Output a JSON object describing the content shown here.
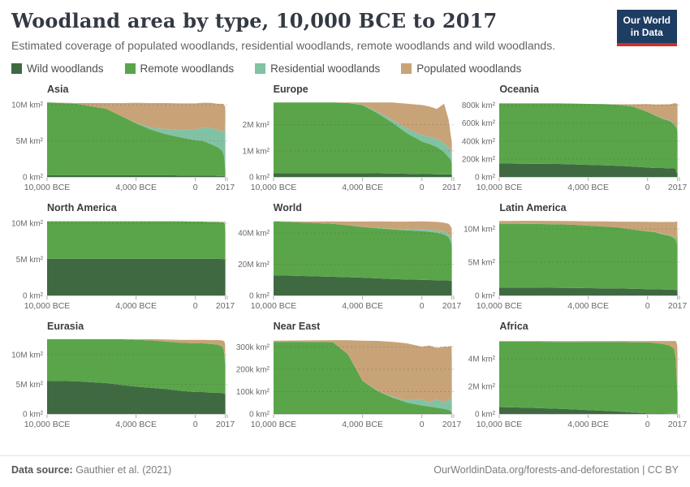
{
  "header": {
    "title": "Woodland area by type, 10,000 BCE to 2017",
    "subtitle": "Estimated coverage of populated woodlands, residential woodlands, remote woodlands and wild woodlands.",
    "logo": {
      "line1": "Our World",
      "line2": "in Data",
      "bg_color": "#1d3d63",
      "bar_color": "#cf2e27"
    }
  },
  "legend": {
    "items": [
      {
        "label": "Wild woodlands",
        "color": "#3f6a41"
      },
      {
        "label": "Remote woodlands",
        "color": "#5aa54a"
      },
      {
        "label": "Residential woodlands",
        "color": "#82c2a4"
      },
      {
        "label": "Populated woodlands",
        "color": "#c8a378"
      }
    ]
  },
  "footer": {
    "source_label": "Data source:",
    "source_value": "Gauthier et al. (2021)",
    "right_text": "OurWorldinData.org/forests-and-deforestation | CC BY"
  },
  "chart_data": {
    "type": "area",
    "stacked": true,
    "grid": true,
    "x_axis_note": "years, negative = BCE",
    "x_years": [
      -10000,
      -8000,
      -6000,
      -5000,
      -4000,
      -3000,
      -2000,
      -1000,
      0,
      500,
      1000,
      1500,
      1800,
      1900,
      1950,
      2000,
      2017
    ],
    "xticks": [
      {
        "v": -10000,
        "label": "10,000 BCE"
      },
      {
        "v": -4000,
        "label": "4,000 BCE"
      },
      {
        "v": 0,
        "label": "0"
      },
      {
        "v": 2017,
        "label": "2017"
      }
    ],
    "series_order": [
      "wild",
      "remote",
      "residential",
      "populated"
    ],
    "series_labels": {
      "wild": "Wild woodlands",
      "remote": "Remote woodlands",
      "residential": "Residential woodlands",
      "populated": "Populated woodlands"
    },
    "colors": {
      "wild": "#3f6a41",
      "remote": "#5aa54a",
      "residential": "#82c2a4",
      "populated": "#c8a378"
    },
    "charts": [
      {
        "title": "Asia",
        "unit": "M km²",
        "ymax": 10.7,
        "yticks": [
          {
            "v": 0,
            "label": "0 km²"
          },
          {
            "v": 5,
            "label": "5M km²"
          },
          {
            "v": 10,
            "label": "10M km²"
          }
        ],
        "series": {
          "wild": [
            0.25,
            0.25,
            0.25,
            0.25,
            0.25,
            0.25,
            0.25,
            0.2,
            0.2,
            0.2,
            0.2,
            0.15,
            0.15,
            0.1,
            0.1,
            0.05,
            0.05
          ],
          "remote": [
            10.1,
            9.9,
            9.2,
            8.2,
            7.2,
            6.3,
            5.7,
            5.3,
            4.9,
            4.8,
            4.4,
            4.0,
            3.5,
            3.0,
            2.5,
            1.2,
            0.8
          ],
          "residential": [
            0,
            0,
            0,
            0,
            0.05,
            0.3,
            0.7,
            1.0,
            1.5,
            1.8,
            2.2,
            2.4,
            2.7,
            3.2,
            3.5,
            6.0,
            6.6
          ],
          "populated": [
            0,
            0.1,
            0.8,
            1.8,
            2.8,
            3.4,
            3.6,
            3.7,
            3.6,
            3.5,
            3.5,
            3.6,
            3.8,
            3.8,
            3.9,
            2.5,
            1.9
          ]
        }
      },
      {
        "title": "Europe",
        "unit": "M km²",
        "ymax": 2.95,
        "yticks": [
          {
            "v": 0,
            "label": "0 km²"
          },
          {
            "v": 1,
            "label": "1M km²"
          },
          {
            "v": 2,
            "label": "2M km²"
          }
        ],
        "series": {
          "wild": [
            0.15,
            0.15,
            0.15,
            0.15,
            0.15,
            0.14,
            0.13,
            0.12,
            0.11,
            0.11,
            0.1,
            0.1,
            0.1,
            0.1,
            0.1,
            0.1,
            0.1
          ],
          "remote": [
            2.7,
            2.7,
            2.7,
            2.68,
            2.6,
            2.3,
            1.95,
            1.55,
            1.25,
            1.15,
            1.05,
            0.85,
            0.65,
            0.6,
            0.55,
            0.45,
            0.4
          ],
          "residential": [
            0,
            0,
            0,
            0,
            0.02,
            0.05,
            0.1,
            0.18,
            0.25,
            0.28,
            0.3,
            0.35,
            0.38,
            0.35,
            0.3,
            0.3,
            0.33
          ],
          "populated": [
            0,
            0,
            0,
            0.02,
            0.08,
            0.36,
            0.67,
            0.95,
            1.14,
            1.16,
            1.15,
            1.5,
            1.07,
            0.75,
            0.65,
            0.55,
            0.47
          ]
        }
      },
      {
        "title": "Oceania",
        "unit": "k km²",
        "ymax": 860,
        "yticks": [
          {
            "v": 0,
            "label": "0 km²"
          },
          {
            "v": 200,
            "label": "200k km²"
          },
          {
            "v": 400,
            "label": "400k km²"
          },
          {
            "v": 600,
            "label": "600k km²"
          },
          {
            "v": 800,
            "label": "800k km²"
          }
        ],
        "series": {
          "wild": [
            150,
            148,
            145,
            140,
            135,
            130,
            125,
            115,
            105,
            100,
            100,
            95,
            95,
            90,
            50,
            48,
            45
          ],
          "remote": [
            670,
            672,
            675,
            678,
            680,
            682,
            680,
            670,
            620,
            585,
            550,
            530,
            490,
            470,
            500,
            480,
            420
          ],
          "residential": [
            0,
            0,
            0,
            0,
            0,
            0,
            0,
            0,
            2,
            3,
            4,
            5,
            6,
            8,
            8,
            8,
            10
          ],
          "populated": [
            0,
            0,
            0,
            0,
            0,
            0,
            5,
            25,
            85,
            120,
            155,
            180,
            230,
            255,
            260,
            280,
            340
          ]
        }
      },
      {
        "title": "North America",
        "unit": "M km²",
        "ymax": 10.7,
        "yticks": [
          {
            "v": 0,
            "label": "0 km²"
          },
          {
            "v": 5,
            "label": "5M km²"
          },
          {
            "v": 10,
            "label": "10M km²"
          }
        ],
        "series": {
          "wild": [
            5.1,
            5.1,
            5.1,
            5.1,
            5.1,
            5.1,
            5.1,
            5.1,
            5.1,
            5.1,
            5.1,
            5.1,
            5.05,
            5.05,
            5.0,
            5.0,
            5.0
          ],
          "remote": [
            5.2,
            5.2,
            5.2,
            5.2,
            5.2,
            5.2,
            5.2,
            5.2,
            5.15,
            5.15,
            5.1,
            5.1,
            5.1,
            5.05,
            5.0,
            5.0,
            3.4
          ],
          "residential": [
            0,
            0,
            0,
            0,
            0,
            0,
            0,
            0,
            0,
            0,
            0,
            0,
            0,
            0.02,
            0.03,
            0.05,
            0.1
          ],
          "populated": [
            0,
            0,
            0,
            0,
            0,
            0,
            0,
            0,
            0.01,
            0.01,
            0.02,
            0.02,
            0.05,
            0.1,
            0.15,
            0.3,
            0.3
          ]
        }
      },
      {
        "title": "World",
        "unit": "M km²",
        "ymax": 49.5,
        "yticks": [
          {
            "v": 0,
            "label": "0 km²"
          },
          {
            "v": 20,
            "label": "20M km²"
          },
          {
            "v": 40,
            "label": "40M km²"
          }
        ],
        "series": {
          "wild": [
            13.0,
            12.5,
            12.0,
            11.7,
            11.4,
            11.0,
            10.6,
            10.2,
            10.0,
            9.9,
            9.8,
            9.7,
            9.6,
            9.5,
            9.5,
            9.4,
            9.4
          ],
          "remote": [
            34.5,
            34.3,
            34.0,
            33.3,
            32.6,
            32.2,
            31.8,
            31.6,
            31.3,
            31.0,
            30.4,
            29.4,
            27.9,
            26.0,
            24.5,
            24.0,
            21.0
          ],
          "residential": [
            0,
            0,
            0,
            0,
            0.05,
            0.2,
            0.4,
            0.7,
            1.0,
            1.2,
            1.5,
            1.8,
            2.0,
            2.3,
            2.6,
            4.0,
            3.5
          ],
          "populated": [
            0.2,
            0.6,
            1.5,
            2.4,
            3.4,
            4.1,
            4.6,
            4.9,
            5.2,
            5.3,
            5.5,
            5.8,
            6.5,
            7.2,
            7.4,
            6.3,
            5.2
          ]
        }
      },
      {
        "title": "Latin America",
        "unit": "M km²",
        "ymax": 11.6,
        "yticks": [
          {
            "v": 0,
            "label": "0 km²"
          },
          {
            "v": 5,
            "label": "5M km²"
          },
          {
            "v": 10,
            "label": "10M km²"
          }
        ],
        "series": {
          "wild": [
            1.2,
            1.18,
            1.15,
            1.13,
            1.1,
            1.08,
            1.05,
            1.0,
            0.95,
            0.93,
            0.9,
            0.88,
            0.85,
            0.82,
            0.8,
            0.8,
            0.8
          ],
          "remote": [
            9.6,
            9.6,
            9.55,
            9.5,
            9.4,
            9.3,
            9.2,
            8.9,
            8.7,
            8.6,
            8.3,
            8.1,
            7.8,
            7.5,
            7.0,
            9.8,
            5.5
          ],
          "residential": [
            0,
            0,
            0,
            0,
            0,
            0,
            0,
            0,
            0.02,
            0.03,
            0.05,
            0.08,
            0.1,
            0.15,
            0.2,
            0.1,
            0.1
          ],
          "populated": [
            0.4,
            0.45,
            0.5,
            0.55,
            0.65,
            0.75,
            0.85,
            1.2,
            1.4,
            1.5,
            1.8,
            2.0,
            2.3,
            2.6,
            3.1,
            0.5,
            2.0
          ]
        }
      },
      {
        "title": "Eurasia",
        "unit": "M km²",
        "ymax": 13.0,
        "yticks": [
          {
            "v": 0,
            "label": "0 km²"
          },
          {
            "v": 5,
            "label": "5M km²"
          },
          {
            "v": 10,
            "label": "10M km²"
          }
        ],
        "series": {
          "wild": [
            5.6,
            5.5,
            5.2,
            4.9,
            4.6,
            4.4,
            4.2,
            3.9,
            3.7,
            3.7,
            3.6,
            3.6,
            3.5,
            3.5,
            3.4,
            3.4,
            3.4
          ],
          "remote": [
            7.0,
            7.1,
            7.4,
            7.7,
            7.9,
            8.0,
            8.0,
            8.1,
            8.2,
            8.2,
            8.2,
            8.1,
            7.9,
            7.4,
            6.8,
            5.2,
            5.0
          ],
          "residential": [
            0,
            0,
            0,
            0,
            0,
            0,
            0,
            0,
            0,
            0,
            0,
            0,
            0,
            0.02,
            0.1,
            0.3,
            0.3
          ],
          "populated": [
            0,
            0,
            0,
            0,
            0.1,
            0.2,
            0.35,
            0.5,
            0.6,
            0.6,
            0.65,
            0.75,
            1.0,
            1.4,
            1.9,
            2.9,
            0.9
          ]
        }
      },
      {
        "title": "Near East",
        "unit": "k km²",
        "ymax": 345,
        "yticks": [
          {
            "v": 0,
            "label": "0 km²"
          },
          {
            "v": 100,
            "label": "100k km²"
          },
          {
            "v": 200,
            "label": "200k km²"
          },
          {
            "v": 300,
            "label": "300k km²"
          }
        ],
        "series": {
          "wild": [
            3,
            3,
            3,
            3,
            3,
            3,
            3,
            3,
            3,
            3,
            3,
            3,
            3,
            3,
            3,
            3,
            3
          ],
          "remote": [
            320,
            320,
            318,
            265,
            145,
            100,
            70,
            48,
            35,
            30,
            25,
            20,
            15,
            12,
            9,
            6,
            4
          ],
          "residential": [
            0,
            0,
            0,
            0,
            0,
            2,
            5,
            10,
            28,
            18,
            38,
            28,
            48,
            38,
            58,
            78,
            83
          ],
          "populated": [
            5,
            6,
            9,
            62,
            180,
            222,
            245,
            255,
            235,
            255,
            230,
            250,
            235,
            250,
            235,
            215,
            155
          ]
        }
      },
      {
        "title": "Africa",
        "unit": "M km²",
        "ymax": 5.6,
        "yticks": [
          {
            "v": 0,
            "label": "0 km²"
          },
          {
            "v": 2,
            "label": "2M km²"
          },
          {
            "v": 4,
            "label": "4M km²"
          }
        ],
        "series": {
          "wild": [
            0.5,
            0.45,
            0.38,
            0.33,
            0.28,
            0.23,
            0.18,
            0.1,
            0.05,
            0.04,
            0.03,
            0.02,
            0.02,
            0.01,
            0.01,
            0,
            0
          ],
          "remote": [
            4.75,
            4.8,
            4.85,
            4.9,
            4.95,
            5.0,
            5.05,
            5.1,
            5.15,
            5.1,
            5.05,
            4.95,
            4.7,
            4.0,
            2.8,
            1.8,
            1.5
          ],
          "residential": [
            0,
            0,
            0,
            0,
            0,
            0,
            0,
            0,
            0,
            0,
            0,
            0,
            0.01,
            0.02,
            0.05,
            0.15,
            0.2
          ],
          "populated": [
            0.05,
            0.05,
            0.06,
            0.06,
            0.07,
            0.07,
            0.07,
            0.1,
            0.1,
            0.16,
            0.22,
            0.33,
            0.57,
            1.27,
            2.34,
            3.0,
            2.6
          ]
        }
      }
    ]
  }
}
